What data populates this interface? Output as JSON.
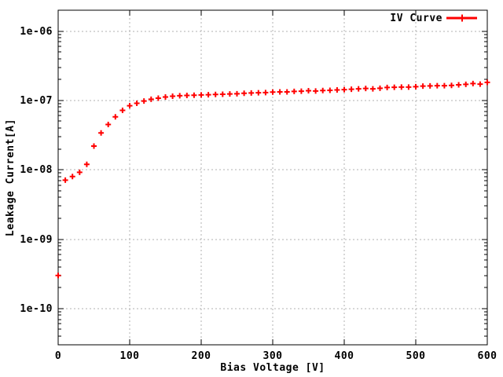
{
  "colors": {
    "background": "#ffffff",
    "axis": "#000000",
    "grid": "#b0b0b0",
    "text": "#000000",
    "series_red": "#ff0000"
  },
  "chart_data": {
    "type": "scatter",
    "title": "",
    "xlabel": "Bias Voltage [V]",
    "ylabel": "Leakage Current[A]",
    "x_scale": "linear",
    "y_scale": "log",
    "xlim": [
      0,
      600
    ],
    "ylim": [
      3e-11,
      2e-06
    ],
    "x_ticks": [
      0,
      100,
      200,
      300,
      400,
      500,
      600
    ],
    "y_ticks": [
      {
        "value": 1e-06,
        "label": "1e-06"
      },
      {
        "value": 1e-07,
        "label": "1e-07"
      },
      {
        "value": 1e-08,
        "label": "1e-08"
      },
      {
        "value": 1e-09,
        "label": "1e-09"
      },
      {
        "value": 1e-10,
        "label": "1e-10"
      }
    ],
    "grid": true,
    "legend": {
      "position": "top-right-inside",
      "entries": [
        {
          "label": "IV Curve",
          "color": "#ff0000",
          "marker": "plus",
          "style": "line-with-point"
        }
      ]
    },
    "series": [
      {
        "name": "IV Curve",
        "color": "#ff0000",
        "marker": "plus",
        "x": [
          0,
          10,
          20,
          30,
          40,
          50,
          60,
          70,
          80,
          90,
          100,
          110,
          120,
          130,
          140,
          150,
          160,
          170,
          180,
          190,
          200,
          210,
          220,
          230,
          240,
          250,
          260,
          270,
          280,
          290,
          300,
          310,
          320,
          330,
          340,
          350,
          360,
          370,
          380,
          390,
          400,
          410,
          420,
          430,
          440,
          450,
          460,
          470,
          480,
          490,
          500,
          510,
          520,
          530,
          540,
          550,
          560,
          570,
          580,
          590,
          600
        ],
        "y": [
          3e-10,
          7.1e-09,
          8e-09,
          9.2e-09,
          1.2e-08,
          2.2e-08,
          3.4e-08,
          4.5e-08,
          5.8e-08,
          7.2e-08,
          8.4e-08,
          9.1e-08,
          9.8e-08,
          1.04e-07,
          1.08e-07,
          1.12e-07,
          1.15e-07,
          1.17e-07,
          1.18e-07,
          1.19e-07,
          1.2e-07,
          1.21e-07,
          1.22e-07,
          1.23e-07,
          1.24e-07,
          1.25e-07,
          1.27e-07,
          1.28e-07,
          1.29e-07,
          1.3e-07,
          1.32e-07,
          1.33e-07,
          1.33e-07,
          1.35e-07,
          1.36e-07,
          1.38e-07,
          1.37e-07,
          1.39e-07,
          1.4e-07,
          1.42e-07,
          1.43e-07,
          1.45e-07,
          1.47e-07,
          1.49e-07,
          1.47e-07,
          1.5e-07,
          1.54e-07,
          1.55e-07,
          1.56e-07,
          1.56e-07,
          1.58e-07,
          1.61e-07,
          1.62e-07,
          1.63e-07,
          1.63e-07,
          1.65e-07,
          1.68e-07,
          1.71e-07,
          1.75e-07,
          1.72e-07,
          1.82e-07
        ]
      }
    ]
  }
}
